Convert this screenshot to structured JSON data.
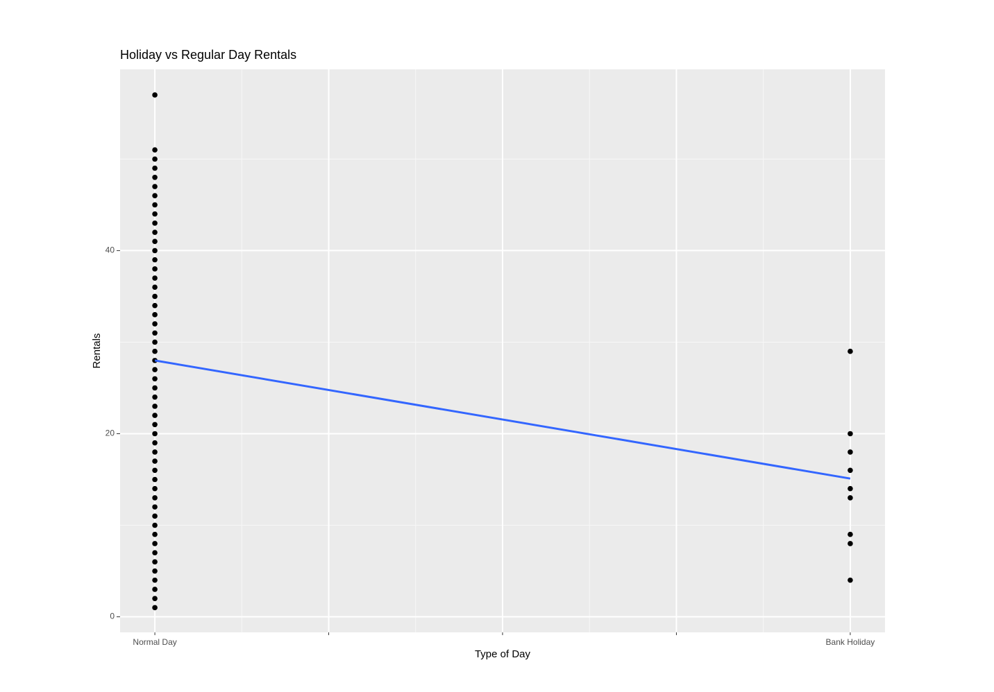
{
  "chart_data": {
    "type": "scatter",
    "title": "Holiday vs Regular Day Rentals",
    "x_label": "Type of Day",
    "y_label": "Rentals",
    "xlim": [
      -0.05,
      1.05
    ],
    "ylim": [
      -1.7,
      59.8
    ],
    "xticks": [
      {
        "value": 0,
        "label": "Normal Day"
      },
      {
        "value": 0.25,
        "label": null
      },
      {
        "value": 0.5,
        "label": null
      },
      {
        "value": 0.75,
        "label": null
      },
      {
        "value": 1,
        "label": "Bank Holiday"
      }
    ],
    "yticks": [
      0,
      20,
      40
    ],
    "grid": true,
    "series": [
      {
        "type": "scatter",
        "color": "#000000",
        "x": [
          0,
          0,
          0,
          0,
          0,
          0,
          0,
          0,
          0,
          0,
          0,
          0,
          0,
          0,
          0,
          0,
          0,
          0,
          0,
          0,
          0,
          0,
          0,
          0,
          0,
          0,
          0,
          0,
          0,
          0,
          0,
          0,
          0,
          0,
          0,
          0,
          0,
          0,
          0,
          0,
          0,
          0,
          0,
          0,
          0,
          0,
          0,
          0,
          0,
          0,
          0,
          0
        ],
        "values": [
          1,
          2,
          3,
          4,
          5,
          6,
          7,
          8,
          9,
          10,
          11,
          12,
          13,
          14,
          15,
          16,
          17,
          18,
          19,
          20,
          21,
          22,
          23,
          24,
          25,
          26,
          27,
          28,
          29,
          30,
          31,
          32,
          33,
          34,
          35,
          36,
          37,
          38,
          39,
          40,
          41,
          42,
          43,
          44,
          45,
          46,
          47,
          48,
          49,
          50,
          51,
          57
        ]
      },
      {
        "type": "scatter",
        "color": "#000000",
        "x": [
          1,
          1,
          1,
          1,
          1,
          1,
          1,
          1,
          1
        ],
        "values": [
          4,
          8,
          9,
          13,
          14,
          16,
          18,
          20,
          29
        ]
      },
      {
        "type": "line",
        "color": "#3366ff",
        "x": [
          0,
          1
        ],
        "values": [
          28.0,
          15.1
        ]
      }
    ]
  }
}
